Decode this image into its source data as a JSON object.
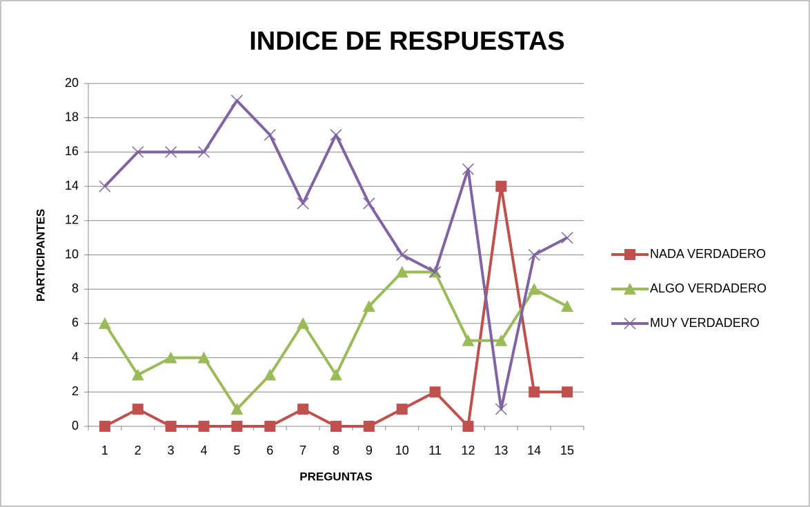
{
  "chart_data": {
    "type": "line",
    "title": "INDICE DE RESPUESTAS",
    "x_label": "PREGUNTAS",
    "y_label": "PARTICIPANTES",
    "categories": [
      "1",
      "2",
      "3",
      "4",
      "5",
      "6",
      "7",
      "8",
      "9",
      "10",
      "11",
      "12",
      "13",
      "14",
      "15"
    ],
    "series": [
      {
        "name": "NADA VERDADERO",
        "color": "#c0504d",
        "marker": "square",
        "values": [
          0,
          1,
          0,
          0,
          0,
          0,
          1,
          0,
          0,
          1,
          2,
          0,
          14,
          2,
          2
        ]
      },
      {
        "name": "ALGO VERDADERO",
        "color": "#9bbb59",
        "marker": "triangle",
        "values": [
          6,
          3,
          4,
          4,
          1,
          3,
          6,
          3,
          7,
          9,
          9,
          5,
          5,
          8,
          7
        ]
      },
      {
        "name": "MUY VERDADERO",
        "color": "#8064a2",
        "marker": "x",
        "values": [
          14,
          16,
          16,
          16,
          19,
          17,
          13,
          17,
          13,
          10,
          9,
          15,
          1,
          10,
          11
        ]
      }
    ],
    "ylim": [
      0,
      20
    ],
    "yticks": [
      0,
      2,
      4,
      6,
      8,
      10,
      12,
      14,
      16,
      18,
      20
    ],
    "grid": true,
    "legend": "right"
  }
}
